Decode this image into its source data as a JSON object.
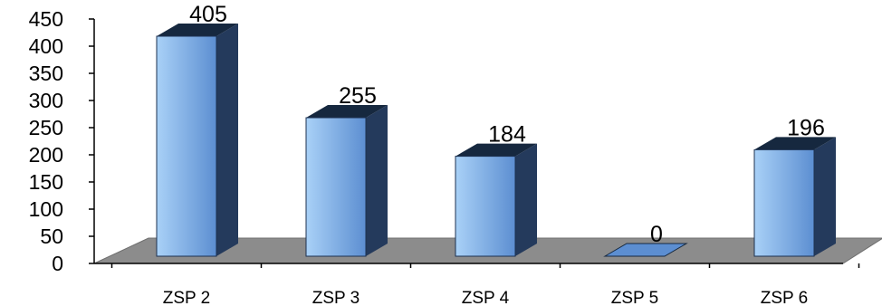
{
  "chart_data": {
    "type": "bar",
    "categories": [
      "ZSP 2",
      "ZSP 3",
      "ZSP 4",
      "ZSP 5",
      "ZSP 6"
    ],
    "values": [
      405,
      255,
      184,
      0,
      196
    ],
    "data_labels": [
      "405",
      "255",
      "184",
      "0",
      "196"
    ],
    "title": "",
    "xlabel": "",
    "ylabel": "",
    "ylim": [
      0,
      450
    ],
    "yticks": [
      "0",
      "50",
      "100",
      "150",
      "200",
      "250",
      "300",
      "350",
      "400",
      "450"
    ],
    "grid": false,
    "legend": "none",
    "style": "3d-column",
    "colors": {
      "bar_front_light": "#a9d1f7",
      "bar_front_dark": "#5c8ed1",
      "bar_side": "#243a5c",
      "bar_top": "#16283f",
      "floor": "#8c8c8c",
      "axis": "#000000"
    }
  }
}
